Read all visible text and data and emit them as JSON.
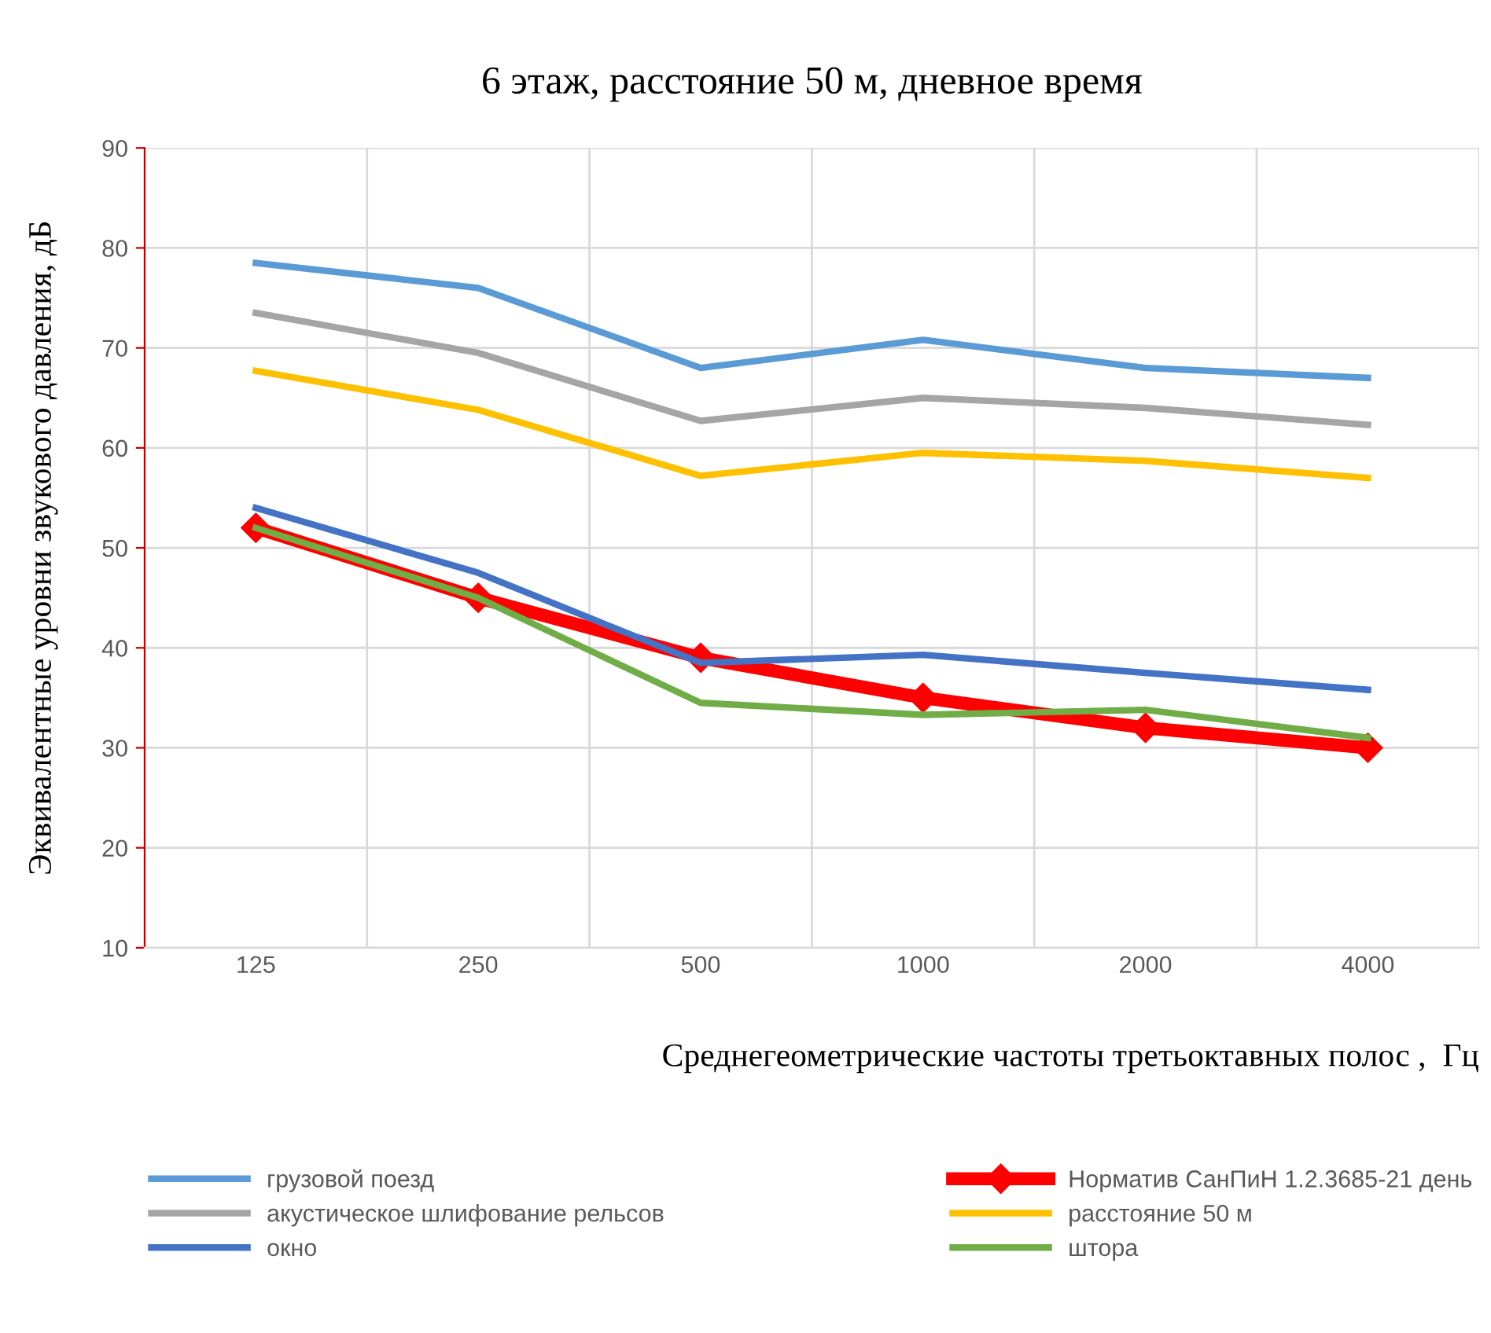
{
  "chart_data": {
    "type": "line",
    "title": "6 этаж, расстояние 50 м, дневное время",
    "xlabel": "Среднегеометрические частоты третьоктавных полос ,  Гц",
    "ylabel": "Эквивалентные уровни звукового давления, дБ",
    "categories": [
      "125",
      "250",
      "500",
      "1000",
      "2000",
      "4000"
    ],
    "series": [
      {
        "name": "грузовой поезд",
        "color": "#5b9bd5",
        "values": [
          78.5,
          76,
          68,
          70.8,
          68,
          67
        ]
      },
      {
        "name": "акустическое шлифование рельсов",
        "color": "#a5a5a5",
        "values": [
          73.5,
          69.5,
          62.7,
          65,
          64,
          62.3
        ]
      },
      {
        "name": "окно",
        "color": "#4472c4",
        "values": [
          54,
          47.5,
          38.5,
          39.3,
          37.5,
          35.8
        ]
      },
      {
        "name": "Норматив СанПиН 1.2.3685-21 день",
        "color": "#ff0000",
        "values": [
          52,
          45,
          39,
          35,
          32,
          30
        ],
        "marker": "diamond"
      },
      {
        "name": "расстояние 50 м",
        "color": "#ffc000",
        "values": [
          67.7,
          63.8,
          57.2,
          59.5,
          58.7,
          57
        ]
      },
      {
        "name": "штора",
        "color": "#70ad47",
        "values": [
          52,
          45,
          34.5,
          33.3,
          33.8,
          31
        ]
      }
    ],
    "ylim": [
      10,
      90
    ],
    "yticks": [
      10,
      20,
      30,
      40,
      50,
      60,
      70,
      80,
      90
    ],
    "grid": true,
    "legend": "bottom"
  }
}
